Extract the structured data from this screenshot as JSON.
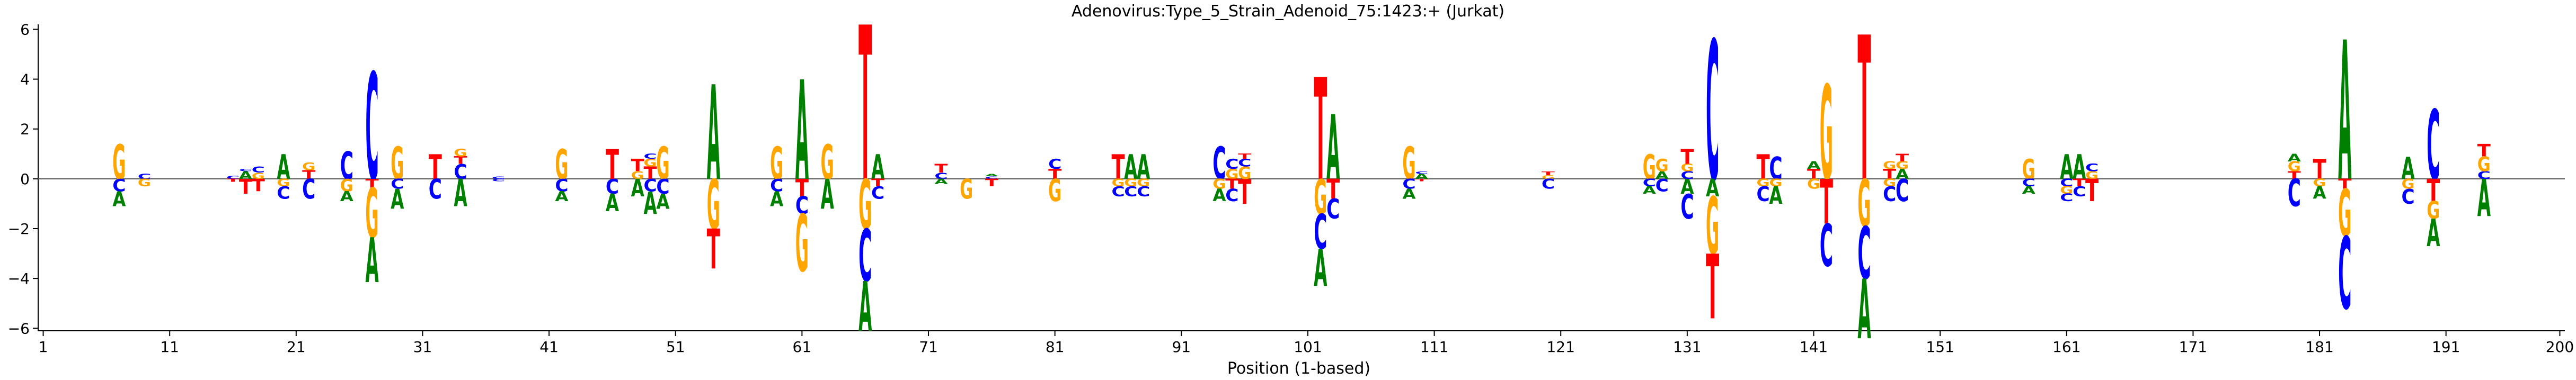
{
  "title": "Adenovirus:Type_5_Strain_Adenoid_75:1423:+  (Jurkat)",
  "chart_data": {
    "type": "sequence-logo",
    "title": "Adenovirus:Type_5_Strain_Adenoid_75:1423:+  (Jurkat)",
    "xlabel": "Position (1-based)",
    "ylabel": "",
    "xlim": [
      1,
      200
    ],
    "ylim": [
      -6.1,
      6.2
    ],
    "x_ticks": [
      1,
      11,
      21,
      31,
      41,
      51,
      61,
      71,
      81,
      91,
      101,
      111,
      121,
      131,
      141,
      151,
      161,
      171,
      181,
      191,
      200
    ],
    "y_ticks": [
      -6,
      -4,
      -2,
      0,
      2,
      4,
      6
    ],
    "grid": false,
    "colors": {
      "A": "#008000",
      "C": "#0000ff",
      "G": "#ffa500",
      "T": "#ff0000"
    },
    "positions": [
      {
        "pos": 7,
        "up": [
          [
            "G",
            1.4
          ]
        ],
        "down": [
          [
            "C",
            0.5
          ],
          [
            "A",
            0.6
          ]
        ]
      },
      {
        "pos": 9,
        "up": [
          [
            "C",
            0.2
          ]
        ],
        "down": [
          [
            "G",
            0.3
          ]
        ]
      },
      {
        "pos": 16,
        "up": [
          [
            "C",
            0.12
          ]
        ],
        "down": [
          [
            "T",
            0.12
          ]
        ]
      },
      {
        "pos": 17,
        "up": [
          [
            "A",
            0.3
          ],
          [
            "C",
            0.1
          ]
        ],
        "down": [
          [
            "T",
            0.6
          ]
        ]
      },
      {
        "pos": 18,
        "up": [
          [
            "G",
            0.25
          ],
          [
            "C",
            0.25
          ]
        ],
        "down": [
          [
            "T",
            0.5
          ]
        ]
      },
      {
        "pos": 20,
        "up": [
          [
            "A",
            1.0
          ]
        ],
        "down": [
          [
            "G",
            0.3
          ],
          [
            "C",
            0.5
          ]
        ]
      },
      {
        "pos": 22,
        "up": [
          [
            "T",
            0.35
          ],
          [
            "G",
            0.3
          ]
        ],
        "down": [
          [
            "C",
            0.8
          ]
        ]
      },
      {
        "pos": 25,
        "up": [
          [
            "C",
            1.1
          ]
        ],
        "down": [
          [
            "G",
            0.5
          ],
          [
            "A",
            0.4
          ]
        ]
      },
      {
        "pos": 27,
        "up": [
          [
            "C",
            4.3
          ]
        ],
        "down": [
          [
            "T",
            0.35
          ],
          [
            "G",
            2.0
          ],
          [
            "A",
            1.8
          ]
        ]
      },
      {
        "pos": 29,
        "up": [
          [
            "G",
            1.3
          ]
        ],
        "down": [
          [
            "C",
            0.4
          ],
          [
            "A",
            0.8
          ]
        ]
      },
      {
        "pos": 32,
        "up": [
          [
            "T",
            1.0
          ]
        ],
        "down": [
          [
            "C",
            0.8
          ]
        ]
      },
      {
        "pos": 34,
        "up": [
          [
            "C",
            0.6
          ],
          [
            "T",
            0.3
          ],
          [
            "G",
            0.3
          ]
        ],
        "down": [
          [
            "A",
            1.1
          ]
        ]
      },
      {
        "pos": 37,
        "up": [
          [
            "C",
            0.1
          ]
        ],
        "down": [
          [
            "C",
            0.1
          ]
        ]
      },
      {
        "pos": 42,
        "up": [
          [
            "G",
            1.2
          ]
        ],
        "down": [
          [
            "C",
            0.5
          ],
          [
            "A",
            0.4
          ]
        ]
      },
      {
        "pos": 46,
        "up": [
          [
            "T",
            1.2
          ]
        ],
        "down": [
          [
            "C",
            0.6
          ],
          [
            "A",
            0.7
          ]
        ]
      },
      {
        "pos": 48,
        "up": [
          [
            "G",
            0.3
          ],
          [
            "T",
            0.5
          ]
        ],
        "down": [
          [
            "A",
            0.7
          ]
        ]
      },
      {
        "pos": 49,
        "up": [
          [
            "T",
            0.5
          ],
          [
            "G",
            0.3
          ],
          [
            "C",
            0.2
          ]
        ],
        "down": [
          [
            "C",
            0.5
          ],
          [
            "A",
            0.9
          ]
        ]
      },
      {
        "pos": 50,
        "up": [
          [
            "G",
            1.3
          ]
        ],
        "down": [
          [
            "C",
            0.6
          ],
          [
            "A",
            0.6
          ]
        ]
      },
      {
        "pos": 54,
        "up": [
          [
            "A",
            3.8
          ]
        ],
        "down": [
          [
            "G",
            2.0
          ],
          [
            "T",
            1.6
          ]
        ]
      },
      {
        "pos": 59,
        "up": [
          [
            "G",
            1.3
          ]
        ],
        "down": [
          [
            "C",
            0.5
          ],
          [
            "A",
            0.6
          ]
        ]
      },
      {
        "pos": 61,
        "up": [
          [
            "A",
            4.0
          ]
        ],
        "down": [
          [
            "T",
            0.7
          ],
          [
            "C",
            0.7
          ],
          [
            "G",
            2.3
          ]
        ]
      },
      {
        "pos": 63,
        "up": [
          [
            "G",
            1.4
          ]
        ],
        "down": [
          [
            "A",
            1.2
          ]
        ]
      },
      {
        "pos": 66,
        "up": [
          [
            "T",
            6.2
          ]
        ],
        "down": [
          [
            "G",
            2.0
          ],
          [
            "C",
            2.1
          ],
          [
            "A",
            2.0
          ]
        ]
      },
      {
        "pos": 67,
        "up": [
          [
            "A",
            1.0
          ]
        ],
        "down": [
          [
            "T",
            0.3
          ],
          [
            "C",
            0.5
          ]
        ]
      },
      {
        "pos": 72,
        "up": [
          [
            "C",
            0.25
          ],
          [
            "T",
            0.35
          ]
        ],
        "down": [
          [
            "A",
            0.2
          ]
        ]
      },
      {
        "pos": 74,
        "up": [],
        "down": [
          [
            "G",
            0.8
          ]
        ]
      },
      {
        "pos": 76,
        "up": [
          [
            "C",
            0.1
          ],
          [
            "A",
            0.1
          ]
        ],
        "down": [
          [
            "T",
            0.3
          ]
        ]
      },
      {
        "pos": 81,
        "up": [
          [
            "T",
            0.4
          ],
          [
            "C",
            0.4
          ]
        ],
        "down": [
          [
            "G",
            0.9
          ]
        ]
      },
      {
        "pos": 86,
        "up": [
          [
            "T",
            1.0
          ]
        ],
        "down": [
          [
            "G",
            0.3
          ],
          [
            "C",
            0.4
          ]
        ]
      },
      {
        "pos": 87,
        "up": [
          [
            "A",
            1.0
          ]
        ],
        "down": [
          [
            "G",
            0.3
          ],
          [
            "C",
            0.4
          ]
        ]
      },
      {
        "pos": 88,
        "up": [
          [
            "A",
            1.0
          ]
        ],
        "down": [
          [
            "G",
            0.3
          ],
          [
            "C",
            0.4
          ]
        ]
      },
      {
        "pos": 94,
        "up": [
          [
            "C",
            1.3
          ]
        ],
        "down": [
          [
            "G",
            0.4
          ],
          [
            "A",
            0.5
          ]
        ]
      },
      {
        "pos": 95,
        "up": [
          [
            "G",
            0.4
          ],
          [
            "C",
            0.4
          ]
        ],
        "down": [
          [
            "T",
            0.4
          ],
          [
            "C",
            0.5
          ]
        ]
      },
      {
        "pos": 96,
        "up": [
          [
            "G",
            0.5
          ],
          [
            "C",
            0.3
          ],
          [
            "T",
            0.2
          ]
        ],
        "down": [
          [
            "T",
            1.0
          ]
        ]
      },
      {
        "pos": 102,
        "up": [
          [
            "T",
            4.1
          ]
        ],
        "down": [
          [
            "G",
            1.4
          ],
          [
            "C",
            1.4
          ],
          [
            "A",
            1.5
          ]
        ]
      },
      {
        "pos": 103,
        "up": [
          [
            "A",
            2.6
          ]
        ],
        "down": [
          [
            "T",
            0.8
          ],
          [
            "C",
            0.8
          ]
        ]
      },
      {
        "pos": 109,
        "up": [
          [
            "G",
            1.3
          ]
        ],
        "down": [
          [
            "C",
            0.4
          ],
          [
            "A",
            0.4
          ]
        ]
      },
      {
        "pos": 110,
        "up": [
          [
            "A",
            0.2
          ],
          [
            "C",
            0.1
          ]
        ],
        "down": [
          [
            "T",
            0.1
          ]
        ]
      },
      {
        "pos": 120,
        "up": [
          [
            "G",
            0.15
          ],
          [
            "T",
            0.15
          ]
        ],
        "down": [
          [
            "C",
            0.4
          ]
        ]
      },
      {
        "pos": 128,
        "up": [
          [
            "G",
            1.0
          ]
        ],
        "down": [
          [
            "C",
            0.3
          ],
          [
            "A",
            0.3
          ]
        ]
      },
      {
        "pos": 129,
        "up": [
          [
            "A",
            0.3
          ],
          [
            "G",
            0.5
          ]
        ],
        "down": [
          [
            "C",
            0.5
          ]
        ]
      },
      {
        "pos": 131,
        "up": [
          [
            "C",
            0.3
          ],
          [
            "G",
            0.3
          ],
          [
            "T",
            0.6
          ]
        ],
        "down": [
          [
            "A",
            0.6
          ],
          [
            "C",
            1.0
          ]
        ]
      },
      {
        "pos": 133,
        "up": [
          [
            "C",
            5.6
          ]
        ],
        "down": [
          [
            "A",
            0.7
          ],
          [
            "G",
            2.3
          ],
          [
            "T",
            2.6
          ]
        ]
      },
      {
        "pos": 137,
        "up": [
          [
            "T",
            1.0
          ]
        ],
        "down": [
          [
            "G",
            0.3
          ],
          [
            "C",
            0.6
          ]
        ]
      },
      {
        "pos": 138,
        "up": [
          [
            "C",
            0.9
          ]
        ],
        "down": [
          [
            "G",
            0.3
          ],
          [
            "A",
            0.7
          ]
        ]
      },
      {
        "pos": 141,
        "up": [
          [
            "T",
            0.4
          ],
          [
            "A",
            0.3
          ]
        ],
        "down": [
          [
            "G",
            0.4
          ]
        ]
      },
      {
        "pos": 142,
        "up": [
          [
            "G",
            3.8
          ]
        ],
        "down": [
          [
            "T",
            1.8
          ],
          [
            "C",
            1.7
          ]
        ]
      },
      {
        "pos": 145,
        "up": [
          [
            "T",
            5.8
          ]
        ],
        "down": [
          [
            "G",
            1.9
          ],
          [
            "C",
            2.1
          ],
          [
            "A",
            2.4
          ]
        ]
      },
      {
        "pos": 147,
        "up": [
          [
            "T",
            0.4
          ],
          [
            "G",
            0.3
          ]
        ],
        "down": [
          [
            "G",
            0.3
          ],
          [
            "C",
            0.6
          ]
        ]
      },
      {
        "pos": 148,
        "up": [
          [
            "A",
            0.4
          ],
          [
            "G",
            0.3
          ],
          [
            "T",
            0.3
          ]
        ],
        "down": [
          [
            "C",
            0.9
          ]
        ]
      },
      {
        "pos": 158,
        "up": [
          [
            "G",
            0.8
          ]
        ],
        "down": [
          [
            "C",
            0.3
          ],
          [
            "A",
            0.3
          ]
        ]
      },
      {
        "pos": 161,
        "up": [
          [
            "A",
            1.0
          ]
        ],
        "down": [
          [
            "C",
            0.3
          ],
          [
            "G",
            0.3
          ],
          [
            "C",
            0.3
          ]
        ]
      },
      {
        "pos": 162,
        "up": [
          [
            "A",
            1.0
          ]
        ],
        "down": [
          [
            "T",
            0.3
          ],
          [
            "C",
            0.4
          ]
        ]
      },
      {
        "pos": 163,
        "up": [
          [
            "G",
            0.3
          ],
          [
            "C",
            0.3
          ]
        ],
        "down": [
          [
            "T",
            0.9
          ]
        ]
      },
      {
        "pos": 179,
        "up": [
          [
            "T",
            0.3
          ],
          [
            "G",
            0.4
          ],
          [
            "A",
            0.3
          ]
        ],
        "down": [
          [
            "C",
            1.1
          ]
        ]
      },
      {
        "pos": 181,
        "up": [
          [
            "T",
            0.8
          ]
        ],
        "down": [
          [
            "G",
            0.3
          ],
          [
            "A",
            0.5
          ]
        ]
      },
      {
        "pos": 183,
        "up": [
          [
            "A",
            5.6
          ]
        ],
        "down": [
          [
            "T",
            0.4
          ],
          [
            "G",
            1.9
          ],
          [
            "C",
            2.9
          ]
        ]
      },
      {
        "pos": 188,
        "up": [
          [
            "A",
            0.9
          ]
        ],
        "down": [
          [
            "G",
            0.4
          ],
          [
            "C",
            0.6
          ]
        ]
      },
      {
        "pos": 190,
        "up": [
          [
            "C",
            2.8
          ]
        ],
        "down": [
          [
            "T",
            0.9
          ],
          [
            "G",
            0.7
          ],
          [
            "A",
            1.1
          ]
        ]
      },
      {
        "pos": 194,
        "up": [
          [
            "C",
            0.3
          ],
          [
            "G",
            0.6
          ],
          [
            "T",
            0.5
          ]
        ],
        "down": [
          [
            "A",
            1.5
          ]
        ]
      }
    ]
  }
}
